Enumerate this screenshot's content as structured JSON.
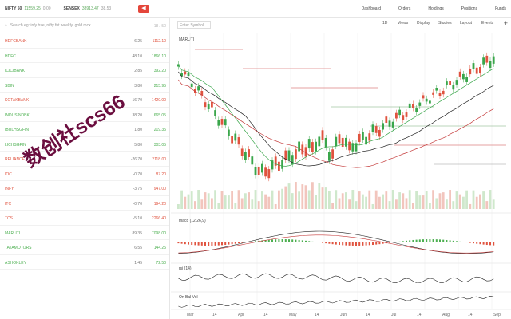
{
  "topbar": {
    "tickers": [
      {
        "name": "NIFTY 50",
        "price": "11559.25",
        "change": "0.00"
      },
      {
        "name": "SENSEX",
        "price": "38913.47",
        "change": "38.53"
      }
    ],
    "nav": [
      "Dashboard",
      "Orders",
      "Holdings",
      "Positions",
      "Funds"
    ]
  },
  "watchlist": {
    "search_placeholder": "Search eg: infy bse, nifty fut weekly, gold mcx",
    "count": "18 / 50",
    "items": [
      {
        "symbol": "HDFCBANK",
        "change": "-6.25",
        "ltp": "1112.10",
        "dir": "dn"
      },
      {
        "symbol": "HDFC",
        "change": "48.10",
        "ltp": "1866.10",
        "dir": "up"
      },
      {
        "symbol": "ICICIBANK",
        "change": "2.85",
        "ltp": "392.20",
        "dir": "up"
      },
      {
        "symbol": "SBIN",
        "change": "3.80",
        "ltp": "215.95",
        "dir": "up"
      },
      {
        "symbol": "KOTAKBANK",
        "change": "-16.70",
        "ltp": "1420.00",
        "dir": "dn"
      },
      {
        "symbol": "INDUSINDBK",
        "change": "38.20",
        "ltp": "665.05",
        "dir": "up"
      },
      {
        "symbol": "IBULHSGFIN",
        "change": "1.80",
        "ltp": "219.35",
        "dir": "up"
      },
      {
        "symbol": "LICHSGFIN",
        "change": "5.80",
        "ltp": "303.05",
        "dir": "up"
      },
      {
        "symbol": "RELIANCE",
        "change": "-26.70",
        "ltp": "2118.00",
        "dir": "dn"
      },
      {
        "symbol": "IOC",
        "change": "-0.70",
        "ltp": "87.20",
        "dir": "dn"
      },
      {
        "symbol": "INFY",
        "change": "-3.75",
        "ltp": "947.00",
        "dir": "dn"
      },
      {
        "symbol": "ITC",
        "change": "-0.70",
        "ltp": "194.20",
        "dir": "dn"
      },
      {
        "symbol": "TCS",
        "change": "-5.10",
        "ltp": "2266.40",
        "dir": "dn"
      },
      {
        "symbol": "MARUTI",
        "change": "89.35",
        "ltp": "7098.00",
        "dir": "up"
      },
      {
        "symbol": "TATAMOTORS",
        "change": "6.55",
        "ltp": "144.25",
        "dir": "up"
      },
      {
        "symbol": "ASHOKLEY",
        "change": "1.45",
        "ltp": "72.50",
        "dir": "up"
      }
    ]
  },
  "watermark": "数创社scs66",
  "chart": {
    "symbol_placeholder": "Enter Symbol",
    "toolbar": [
      "1D",
      "Views",
      "Display",
      "Studies",
      "Layout",
      "Events"
    ],
    "instrument": "MARUTI",
    "macd_label": "macd (12,26,9)",
    "rsi_label": "rsi (14)",
    "obv_label": "On Bal Vol",
    "x_labels": [
      "Mar",
      "14",
      "Apr",
      "14",
      "May",
      "14",
      "Jun",
      "14",
      "Jul",
      "14",
      "Aug",
      "14",
      "Sep"
    ],
    "colors": {
      "up": "#3aa64b",
      "down": "#e0533f",
      "ma1": "#222222",
      "ma2": "#c43a3a"
    }
  }
}
